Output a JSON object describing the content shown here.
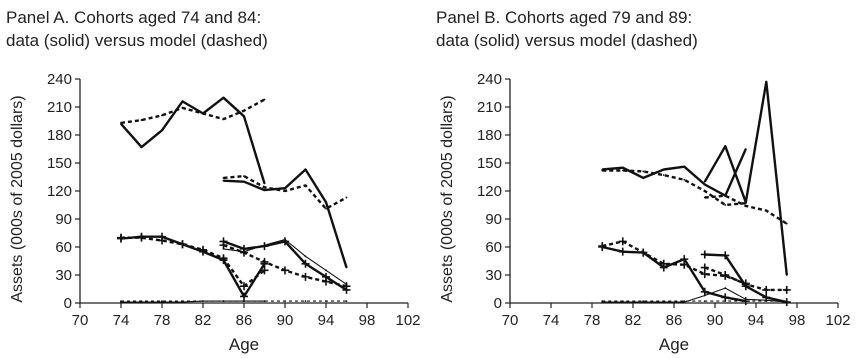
{
  "chart_data": [
    {
      "type": "line",
      "title_lines": [
        "Panel A. Cohorts aged 74 and 84:",
        "data (solid) versus model (dashed)"
      ],
      "xlabel": "Age",
      "ylabel": "Assets (000s of 2005 dollars)",
      "xlim": [
        70,
        102
      ],
      "ylim": [
        0,
        240
      ],
      "xticks": [
        70,
        74,
        78,
        82,
        86,
        90,
        94,
        98,
        102
      ],
      "yticks": [
        0,
        30,
        60,
        90,
        120,
        150,
        180,
        210,
        240
      ],
      "grid": false,
      "series": [
        {
          "style": "solid",
          "weight": "thick",
          "x": [
            74,
            76,
            78,
            80,
            82,
            84,
            86,
            88
          ],
          "y": [
            192,
            167,
            185,
            216,
            203,
            220,
            200,
            128
          ]
        },
        {
          "style": "dashed",
          "weight": "thick",
          "x": [
            74,
            76,
            78,
            80,
            82,
            84,
            86,
            88
          ],
          "y": [
            193,
            196,
            201,
            209,
            203,
            197,
            206,
            218
          ]
        },
        {
          "style": "solid",
          "weight": "thick",
          "x": [
            84,
            86,
            88,
            90,
            92,
            94,
            96
          ],
          "y": [
            131,
            130,
            121,
            123,
            143,
            108,
            38
          ]
        },
        {
          "style": "dashed",
          "weight": "thick",
          "x": [
            84,
            86,
            88,
            90,
            92,
            94,
            96
          ],
          "y": [
            134,
            136,
            124,
            120,
            126,
            101,
            113
          ]
        },
        {
          "style": "solid",
          "weight": "thick",
          "marker": "plus",
          "x": [
            74,
            76,
            78,
            80,
            82,
            84,
            86,
            88
          ],
          "y": [
            69,
            71,
            71,
            63,
            55,
            46,
            7,
            42
          ]
        },
        {
          "style": "dashed",
          "weight": "thick",
          "marker": "plus",
          "x": [
            74,
            76,
            78,
            80,
            82,
            84,
            86,
            88
          ],
          "y": [
            70,
            70,
            67,
            63,
            57,
            48,
            18,
            35
          ]
        },
        {
          "style": "solid",
          "weight": "thick",
          "marker": "plus",
          "x": [
            84,
            86,
            88,
            90,
            92,
            94,
            96
          ],
          "y": [
            66,
            58,
            61,
            66,
            42,
            28,
            14
          ]
        },
        {
          "style": "dashed",
          "weight": "thick",
          "marker": "plus",
          "x": [
            84,
            86,
            88,
            90,
            92,
            94,
            96
          ],
          "y": [
            62,
            54,
            44,
            35,
            28,
            23,
            18
          ]
        },
        {
          "style": "solid",
          "weight": "thin",
          "x": [
            84,
            86,
            88,
            90,
            92,
            94,
            96
          ],
          "y": [
            58,
            55,
            62,
            68,
            50,
            35,
            20
          ]
        },
        {
          "style": "solid",
          "weight": "thin",
          "x": [
            74,
            76,
            78,
            80,
            82,
            84,
            86,
            88
          ],
          "y": [
            1,
            1,
            1,
            1,
            2,
            2,
            2,
            2
          ]
        },
        {
          "style": "dashed",
          "weight": "thin",
          "x": [
            74,
            76,
            78,
            80,
            82,
            84,
            86,
            88,
            90,
            92,
            94,
            96
          ],
          "y": [
            2,
            2,
            2,
            2,
            2,
            2,
            2,
            2,
            2,
            2,
            2,
            2
          ]
        }
      ]
    },
    {
      "type": "line",
      "title_lines": [
        "Panel B. Cohorts aged 79 and 89:",
        "data (solid) versus model (dashed)"
      ],
      "xlabel": "Age",
      "ylabel": "Assets (000s of 2005 dollars)",
      "xlim": [
        70,
        102
      ],
      "ylim": [
        0,
        240
      ],
      "xticks": [
        70,
        74,
        78,
        82,
        86,
        90,
        94,
        98,
        102
      ],
      "yticks": [
        0,
        30,
        60,
        90,
        120,
        150,
        180,
        210,
        240
      ],
      "grid": false,
      "series": [
        {
          "style": "solid",
          "weight": "thick",
          "x": [
            79,
            81,
            83,
            85,
            87,
            89,
            91,
            93
          ],
          "y": [
            143,
            145,
            134,
            143,
            146,
            127,
            115,
            165
          ]
        },
        {
          "style": "dashed",
          "weight": "thick",
          "x": [
            79,
            81,
            83,
            85,
            87,
            89,
            91,
            93
          ],
          "y": [
            142,
            142,
            141,
            137,
            132,
            120,
            105,
            107
          ]
        },
        {
          "style": "solid",
          "weight": "thick",
          "x": [
            89,
            91,
            93,
            95,
            97
          ],
          "y": [
            130,
            168,
            108,
            237,
            30
          ]
        },
        {
          "style": "dashed",
          "weight": "thick",
          "x": [
            89,
            91,
            93,
            95,
            97
          ],
          "y": [
            113,
            115,
            104,
            99,
            85
          ]
        },
        {
          "style": "solid",
          "weight": "thick",
          "marker": "plus",
          "x": [
            79,
            81,
            83,
            85,
            87,
            89,
            91,
            93
          ],
          "y": [
            60,
            55,
            54,
            38,
            47,
            12,
            6,
            2
          ]
        },
        {
          "style": "dashed",
          "weight": "thick",
          "marker": "plus",
          "x": [
            79,
            81,
            83,
            85,
            87,
            89,
            91,
            93
          ],
          "y": [
            61,
            66,
            54,
            42,
            41,
            31,
            29,
            21
          ]
        },
        {
          "style": "solid",
          "weight": "thick",
          "marker": "plus",
          "x": [
            89,
            91,
            93,
            95,
            97
          ],
          "y": [
            52,
            51,
            18,
            6,
            1
          ]
        },
        {
          "style": "dashed",
          "weight": "thick",
          "marker": "plus",
          "x": [
            89,
            91,
            93,
            95,
            97
          ],
          "y": [
            38,
            30,
            20,
            14,
            14
          ]
        },
        {
          "style": "solid",
          "weight": "thin",
          "x": [
            79,
            81,
            83,
            85,
            87,
            89,
            91,
            93,
            95,
            97
          ],
          "y": [
            1,
            1,
            1,
            1,
            1,
            8,
            16,
            4,
            3,
            1
          ]
        },
        {
          "style": "dashed",
          "weight": "thin",
          "x": [
            79,
            81,
            83,
            85,
            87,
            89,
            91,
            93,
            95,
            97
          ],
          "y": [
            2,
            2,
            2,
            2,
            2,
            2,
            2,
            2,
            2,
            2
          ]
        }
      ]
    }
  ]
}
